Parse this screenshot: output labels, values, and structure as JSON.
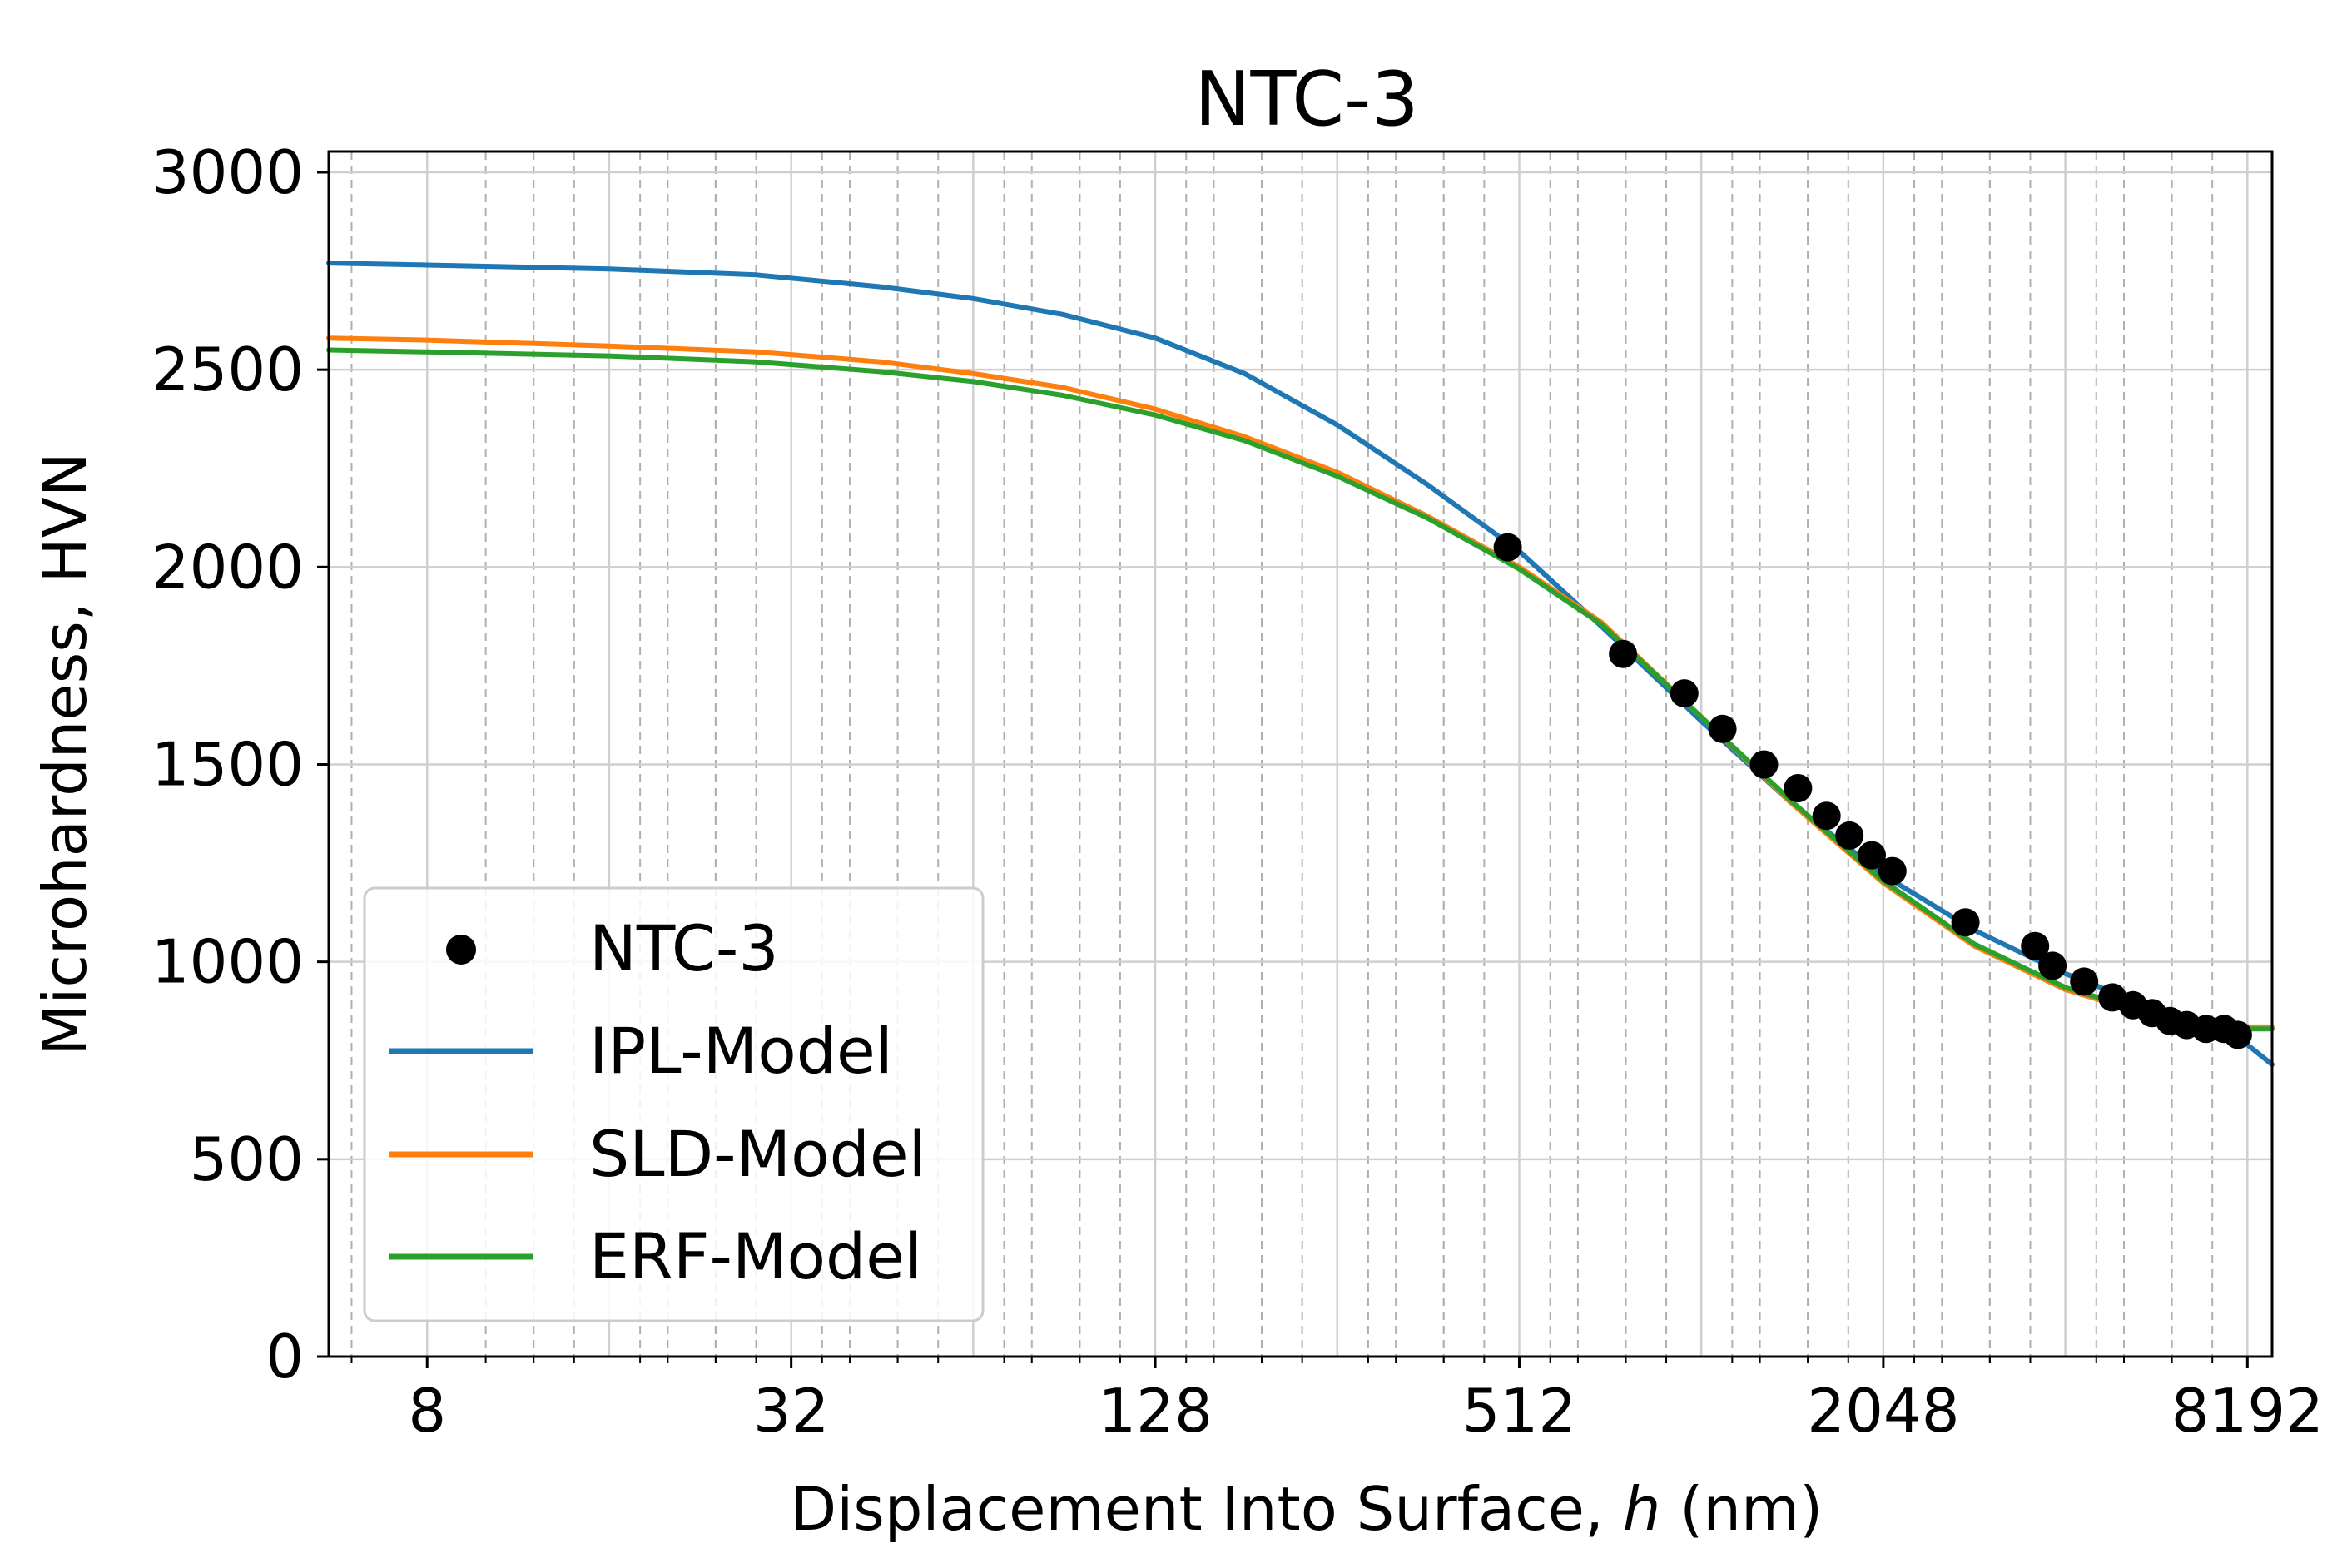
{
  "chart_data": {
    "type": "line",
    "title": "NTC-3",
    "xlabel_main": "Displacement Into Surface, ",
    "xlabel_var": "h",
    "xlabel_unit": " (nm)",
    "ylabel": "Microhardness, HVN",
    "xscale": "log2",
    "xlim": [
      5.5,
      9000
    ],
    "ylim": [
      0,
      3000
    ],
    "x_ticks": [
      8,
      32,
      128,
      512,
      2048,
      8192
    ],
    "x_tick_labels": [
      "8",
      "32",
      "128",
      "512",
      "2048",
      "8192"
    ],
    "y_ticks": [
      0,
      500,
      1000,
      1500,
      2000,
      2500,
      3000
    ],
    "y_tick_labels": [
      "0",
      "500",
      "1000",
      "1500",
      "2000",
      "2500",
      "3000"
    ],
    "grid": true,
    "legend_position": "lower-left",
    "colors": {
      "data": "#000000",
      "ipl": "#1f77b4",
      "sld": "#ff7f0e",
      "erf": "#2ca02c"
    },
    "series": [
      {
        "name": "NTC-3",
        "kind": "scatter",
        "points": [
          [
            490,
            2050
          ],
          [
            760,
            1780
          ],
          [
            960,
            1680
          ],
          [
            1110,
            1590
          ],
          [
            1300,
            1500
          ],
          [
            1480,
            1440
          ],
          [
            1650,
            1370
          ],
          [
            1800,
            1320
          ],
          [
            1960,
            1270
          ],
          [
            2120,
            1230
          ],
          [
            2800,
            1100
          ],
          [
            3650,
            1040
          ],
          [
            3900,
            990
          ],
          [
            4400,
            950
          ],
          [
            4900,
            910
          ],
          [
            5300,
            890
          ],
          [
            5700,
            870
          ],
          [
            6100,
            850
          ],
          [
            6500,
            840
          ],
          [
            7000,
            830
          ],
          [
            7500,
            830
          ],
          [
            7900,
            815
          ]
        ]
      },
      {
        "name": "IPL-Model",
        "kind": "line",
        "points": [
          [
            5.5,
            2770
          ],
          [
            8,
            2765
          ],
          [
            16,
            2755
          ],
          [
            28,
            2740
          ],
          [
            45,
            2710
          ],
          [
            64,
            2680
          ],
          [
            90,
            2640
          ],
          [
            128,
            2580
          ],
          [
            180,
            2490
          ],
          [
            256,
            2360
          ],
          [
            360,
            2210
          ],
          [
            512,
            2040
          ],
          [
            700,
            1850
          ],
          [
            1024,
            1610
          ],
          [
            1448,
            1400
          ],
          [
            2048,
            1220
          ],
          [
            2896,
            1080
          ],
          [
            4096,
            970
          ],
          [
            5793,
            880
          ],
          [
            8192,
            790
          ],
          [
            9000,
            740
          ]
        ]
      },
      {
        "name": "SLD-Model",
        "kind": "line",
        "points": [
          [
            5.5,
            2580
          ],
          [
            8,
            2575
          ],
          [
            16,
            2560
          ],
          [
            28,
            2545
          ],
          [
            45,
            2520
          ],
          [
            64,
            2490
          ],
          [
            90,
            2455
          ],
          [
            128,
            2400
          ],
          [
            180,
            2330
          ],
          [
            256,
            2240
          ],
          [
            360,
            2130
          ],
          [
            512,
            2000
          ],
          [
            700,
            1860
          ],
          [
            1024,
            1620
          ],
          [
            1448,
            1400
          ],
          [
            2048,
            1200
          ],
          [
            2896,
            1040
          ],
          [
            4096,
            930
          ],
          [
            5793,
            860
          ],
          [
            8192,
            835
          ],
          [
            9000,
            835
          ]
        ]
      },
      {
        "name": "ERF-Model",
        "kind": "line",
        "points": [
          [
            5.5,
            2550
          ],
          [
            8,
            2545
          ],
          [
            16,
            2535
          ],
          [
            28,
            2520
          ],
          [
            45,
            2495
          ],
          [
            64,
            2470
          ],
          [
            90,
            2435
          ],
          [
            128,
            2385
          ],
          [
            180,
            2320
          ],
          [
            256,
            2230
          ],
          [
            360,
            2125
          ],
          [
            512,
            1995
          ],
          [
            700,
            1855
          ],
          [
            1024,
            1620
          ],
          [
            1448,
            1405
          ],
          [
            2048,
            1205
          ],
          [
            2896,
            1045
          ],
          [
            4096,
            935
          ],
          [
            5793,
            865
          ],
          [
            8192,
            830
          ],
          [
            9000,
            830
          ]
        ]
      }
    ]
  }
}
